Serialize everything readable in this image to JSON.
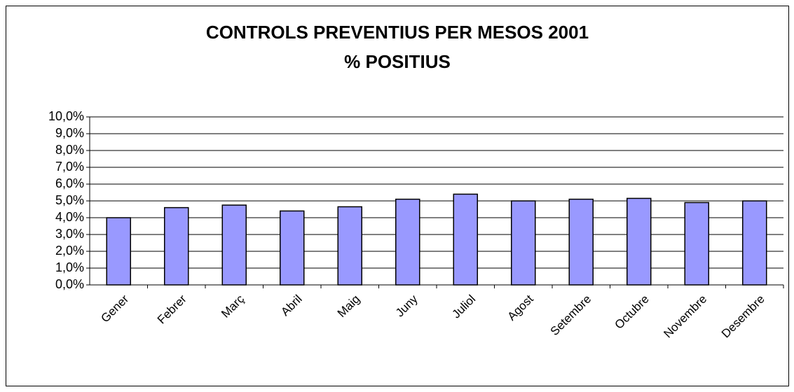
{
  "chart_data": {
    "type": "bar",
    "title": [
      "CONTROLS PREVENTIUS PER MESOS 2001",
      "% POSITIUS"
    ],
    "categories": [
      "Gener",
      "Febrer",
      "Març",
      "Abril",
      "Maig",
      "Juny",
      "Juliol",
      "Agost",
      "Setembre",
      "Octubre",
      "Novembre",
      "Desembre"
    ],
    "values": [
      4.0,
      4.6,
      4.75,
      4.4,
      4.65,
      5.1,
      5.4,
      5.0,
      5.1,
      5.15,
      4.9,
      5.0
    ],
    "color": "#9999ff",
    "ylim": [
      0,
      10
    ],
    "yticks": [
      {
        "value": 0,
        "label": "0,0%"
      },
      {
        "value": 1,
        "label": "1,0%"
      },
      {
        "value": 2,
        "label": "2,0%"
      },
      {
        "value": 3,
        "label": "3,0%"
      },
      {
        "value": 4,
        "label": "4,0%"
      },
      {
        "value": 5,
        "label": "5,0%"
      },
      {
        "value": 6,
        "label": "6,0%"
      },
      {
        "value": 7,
        "label": "7,0%"
      },
      {
        "value": 8,
        "label": "8,0%"
      },
      {
        "value": 9,
        "label": "9,0%"
      },
      {
        "value": 10,
        "label": "10,0%"
      }
    ],
    "grid": true
  }
}
